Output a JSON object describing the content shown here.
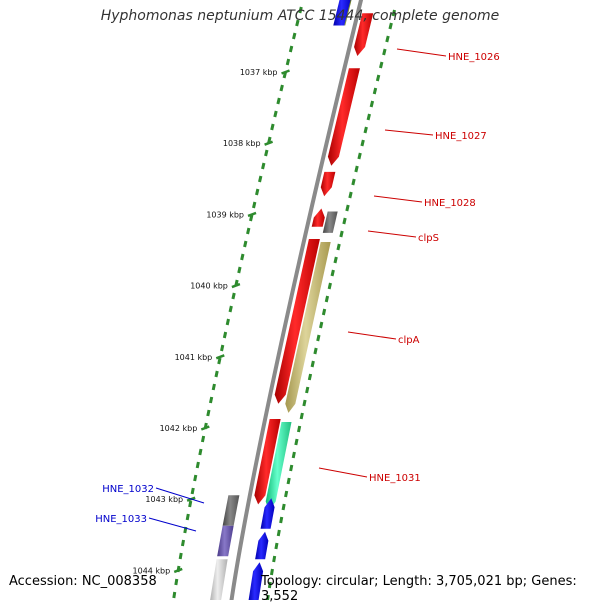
{
  "title": "Hyphomonas neptunium ATCC 15444, complete genome",
  "accession_text": "Accession: NC_008358",
  "topology_text": "Topology: circular; Length: 3,705,021 bp; Genes: 3,552",
  "kbp_labels": [
    "1037 kbp",
    "1038 kbp",
    "1039 kbp",
    "1040 kbp",
    "1041 kbp",
    "1042 kbp",
    "1043 kbp",
    "1044 kbp"
  ],
  "colors": {
    "backbone": "#8a8a8a",
    "gc_ticks": "#2e8b2e",
    "kbp_ticks": "#2e8b2e",
    "red": "#ee0000",
    "blue": "#0000ee",
    "grey": "#666666",
    "khaki": "#c4b86e",
    "aqua": "#33eea0",
    "slate": "#6a5aa8",
    "light": "#d0d0d0",
    "olive": "#7a8a2a",
    "label_red": "#cc0000",
    "label_blue": "#0000cc"
  },
  "genes": [
    {
      "name": "olive-top-feature",
      "track": -1,
      "s": 0.0,
      "e": 0.05,
      "color": "olive",
      "dir": "none"
    },
    {
      "name": "blue-top-feature",
      "track": 1,
      "s": 0.0,
      "e": 0.05,
      "color": "blue",
      "dir": "none"
    },
    {
      "name": "HNE_1026",
      "track": 2,
      "s": 0.03,
      "e": 0.1,
      "color": "red",
      "dir": "down"
    },
    {
      "name": "HNE_1027",
      "track": 2,
      "s": 0.12,
      "e": 0.28,
      "color": "red",
      "dir": "down"
    },
    {
      "name": "HNE_1028",
      "track": 2,
      "s": 0.29,
      "e": 0.33,
      "color": "red",
      "dir": "down"
    },
    {
      "name": "red-before-clpS",
      "track": 2,
      "s": 0.35,
      "e": 0.38,
      "color": "red",
      "dir": "up"
    },
    {
      "name": "clpS",
      "track": 3,
      "s": 0.355,
      "e": 0.39,
      "color": "grey",
      "dir": "none"
    },
    {
      "name": "red-long-inner",
      "track": 2,
      "s": 0.4,
      "e": 0.67,
      "color": "red",
      "dir": "down"
    },
    {
      "name": "clpA",
      "track": 3,
      "s": 0.405,
      "e": 0.685,
      "color": "khaki",
      "dir": "down"
    },
    {
      "name": "red-lower-inner",
      "track": 2,
      "s": 0.695,
      "e": 0.835,
      "color": "red",
      "dir": "down"
    },
    {
      "name": "HNE_1031",
      "track": 3,
      "s": 0.7,
      "e": 0.845,
      "color": "aqua",
      "dir": "down"
    },
    {
      "name": "HNE_1032",
      "track": 1,
      "s": 0.82,
      "e": 0.87,
      "color": "grey",
      "dir": "none"
    },
    {
      "name": "blue-a",
      "track": 3,
      "s": 0.825,
      "e": 0.875,
      "color": "blue",
      "dir": "up"
    },
    {
      "name": "HNE_1033",
      "track": 1,
      "s": 0.87,
      "e": 0.92,
      "color": "slate",
      "dir": "none"
    },
    {
      "name": "blue-b",
      "track": 3,
      "s": 0.88,
      "e": 0.925,
      "color": "blue",
      "dir": "up"
    },
    {
      "name": "light-grey-bottom",
      "track": 1,
      "s": 0.925,
      "e": 1.0,
      "color": "light",
      "dir": "none"
    },
    {
      "name": "blue-c",
      "track": 3,
      "s": 0.93,
      "e": 1.0,
      "color": "blue",
      "dir": "up"
    }
  ],
  "gene_labels": [
    {
      "text": "HNE_1026",
      "color": "label_red"
    },
    {
      "text": "HNE_1027",
      "color": "label_red"
    },
    {
      "text": "HNE_1028",
      "color": "label_red"
    },
    {
      "text": "clpS",
      "color": "label_red"
    },
    {
      "text": "clpA",
      "color": "label_red"
    },
    {
      "text": "HNE_1031",
      "color": "label_red"
    },
    {
      "text": "HNE_1032",
      "color": "label_blue"
    },
    {
      "text": "HNE_1033",
      "color": "label_blue"
    }
  ]
}
